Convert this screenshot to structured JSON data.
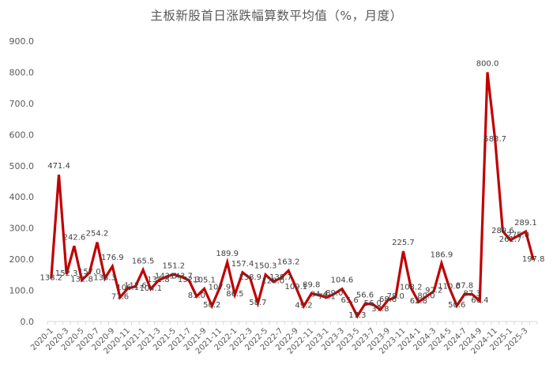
{
  "chart_data": {
    "type": "line",
    "title": "主板新股首日涨跌幅算数平均值（%，月度）",
    "xlabel": "",
    "ylabel": "",
    "ylim": [
      0,
      900
    ],
    "yticks": [
      "0.0",
      "100.0",
      "200.0",
      "300.0",
      "400.0",
      "500.0",
      "600.0",
      "700.0",
      "800.0",
      "900.0"
    ],
    "grid": false,
    "legend": null,
    "line_color": "#C00000",
    "x_tick_labels": [
      "2020-1",
      "2020-3",
      "2020-5",
      "2020-7",
      "2020-9",
      "2020-11",
      "2021-1",
      "2021-3",
      "2021-5",
      "2021-7",
      "2021-9",
      "2021-11",
      "2022-1",
      "2022-3",
      "2022-5",
      "2022-7",
      "2022-9",
      "2022-11",
      "2023-1",
      "2023-3",
      "2023-5",
      "2023-7",
      "2023-9",
      "2023-11",
      "2024-1",
      "2024-3",
      "2024-5",
      "2024-7",
      "2024-9",
      "2024-11",
      "2025-1",
      "2025-3"
    ],
    "categories": [
      "2020-1",
      "2020-2",
      "2020-3",
      "2020-4",
      "2020-5",
      "2020-6",
      "2020-7",
      "2020-8",
      "2020-9",
      "2020-10",
      "2020-11",
      "2020-12",
      "2021-1",
      "2021-2",
      "2021-3",
      "2021-4",
      "2021-5",
      "2021-6",
      "2021-7",
      "2021-8",
      "2021-9",
      "2021-10",
      "2021-11",
      "2021-12",
      "2022-1",
      "2022-2",
      "2022-3",
      "2022-4",
      "2022-5",
      "2022-6",
      "2022-7",
      "2022-8",
      "2022-9",
      "2022-10",
      "2022-11",
      "2022-12",
      "2023-1",
      "2023-2",
      "2023-3",
      "2023-4",
      "2023-5",
      "2023-6",
      "2023-7",
      "2023-8",
      "2023-9",
      "2023-10",
      "2023-11",
      "2023-12",
      "2024-1",
      "2024-2",
      "2024-3",
      "2024-4",
      "2024-5",
      "2024-6",
      "2024-7",
      "2024-8",
      "2024-9",
      "2024-10",
      "2024-11",
      "2024-12",
      "2025-1",
      "2025-2",
      "2025-3",
      "2025-4"
    ],
    "values": [
      138.2,
      471.4,
      152.3,
      242.6,
      132.8,
      157.0,
      254.2,
      138.3,
      176.9,
      77.6,
      106.1,
      112.6,
      165.5,
      104.1,
      131.8,
      143.5,
      151.2,
      143.7,
      132.3,
      81.0,
      105.1,
      50.2,
      107.9,
      189.9,
      86.5,
      157.4,
      138.9,
      58.7,
      150.3,
      128.0,
      139.7,
      163.2,
      109.1,
      49.2,
      89.8,
      84.4,
      77.1,
      89.0,
      104.6,
      65.6,
      17.3,
      56.6,
      56.0,
      37.8,
      68.8,
      78.0,
      225.7,
      108.2,
      62.8,
      80.0,
      97.2,
      186.9,
      110.0,
      50.6,
      87.8,
      87.3,
      66.4,
      800.0,
      583.7,
      289.6,
      261.7,
      275.0,
      289.1,
      197.8
    ]
  }
}
